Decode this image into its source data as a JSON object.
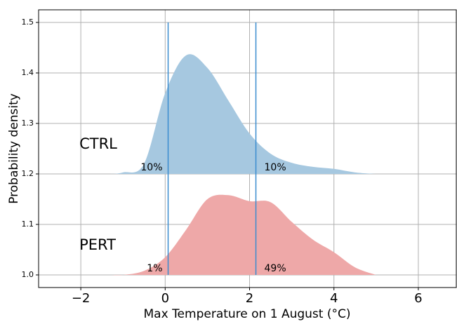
{
  "chart_data": {
    "type": "ridgeline",
    "x_label": "Max Temperature on 1 August (°C)",
    "y_label": "Probability density",
    "x": [
      -1.3,
      -1,
      -0.5,
      0,
      0.5,
      1,
      1.5,
      2,
      2.5,
      3,
      3.5,
      4,
      4.5,
      5
    ],
    "series": [
      {
        "name": "CTRL",
        "color": "#a6c8e0",
        "label_color": "#1f77b4",
        "baseline": 1.2,
        "values": [
          1.2,
          1.203,
          1.22,
          1.36,
          1.435,
          1.41,
          1.345,
          1.28,
          1.24,
          1.222,
          1.214,
          1.21,
          1.203,
          1.2
        ],
        "tails": {
          "values": [
            10,
            10
          ],
          "value_labels": [
            "10%",
            "10%"
          ]
        }
      },
      {
        "name": "PERT",
        "color": "#eea8a8",
        "label_color": "#d62728",
        "baseline": 1.0,
        "values": [
          1.0,
          1.0,
          1.008,
          1.035,
          1.09,
          1.15,
          1.158,
          1.146,
          1.144,
          1.105,
          1.07,
          1.045,
          1.015,
          1.0
        ],
        "tails": {
          "values": [
            1,
            49
          ],
          "value_labels": [
            "1%",
            "49%"
          ]
        }
      }
    ],
    "thresholds": [
      0.07,
      2.15
    ],
    "threshold_color": "#3a8ccf",
    "xlim": [
      -3,
      6.9
    ],
    "ylim": [
      0.975,
      1.525
    ],
    "xticks": [
      {
        "value": -2,
        "label": "−2"
      },
      0,
      2,
      4,
      6
    ],
    "yticks": [
      {
        "value": 1,
        "label": "1.0"
      },
      1.1,
      1.2,
      1.3,
      1.4,
      1.5
    ],
    "grid": true
  }
}
